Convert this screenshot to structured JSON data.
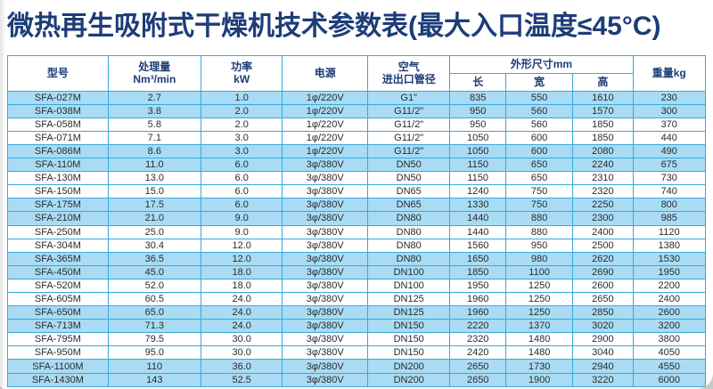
{
  "title": "微热再生吸附式干燥机技术参数表(最大入口温度≤45°C)",
  "colors": {
    "accent_border": "#36a9de",
    "row_highlight": "#a9dcf4",
    "title_text": "#1d3d78",
    "cell_text": "#2b2b2b"
  },
  "table": {
    "column_keys": [
      "model",
      "capacity",
      "power",
      "supply",
      "pipe",
      "length",
      "width",
      "height",
      "weight"
    ],
    "headers": {
      "model": "型号",
      "capacity_line1": "处理量",
      "capacity_line2": "Nm³/min",
      "power_line1": "功率",
      "power_line2": "kW",
      "supply": "电源",
      "pipe_line1": "空气",
      "pipe_line2": "进出口管径",
      "dimensions_group": "外形尺寸mm",
      "dim_length": "长",
      "dim_width": "宽",
      "dim_height": "高",
      "weight": "重量kg"
    },
    "row_highlight_pattern": "pairs-alternating-starting-blue",
    "rows": [
      [
        "SFA-027M",
        "2.7",
        "1.0",
        "1φ/220V",
        "G1\"",
        "835",
        "550",
        "1610",
        "230"
      ],
      [
        "SFA-038M",
        "3.8",
        "2.0",
        "1φ/220V",
        "G11/2\"",
        "950",
        "560",
        "1570",
        "300"
      ],
      [
        "SFA-058M",
        "5.8",
        "2.0",
        "1φ/220V",
        "G11/2\"",
        "950",
        "560",
        "1850",
        "370"
      ],
      [
        "SFA-071M",
        "7.1",
        "3.0",
        "1φ/220V",
        "G11/2\"",
        "1050",
        "600",
        "1850",
        "440"
      ],
      [
        "SFA-086M",
        "8.6",
        "3.0",
        "1φ/220V",
        "G11/2\"",
        "1050",
        "600",
        "2080",
        "490"
      ],
      [
        "SFA-110M",
        "11.0",
        "6.0",
        "3φ/380V",
        "DN50",
        "1150",
        "650",
        "2240",
        "675"
      ],
      [
        "SFA-130M",
        "13.0",
        "6.0",
        "3φ/380V",
        "DN50",
        "1150",
        "650",
        "2310",
        "730"
      ],
      [
        "SFA-150M",
        "15.0",
        "6.0",
        "3φ/380V",
        "DN65",
        "1240",
        "750",
        "2320",
        "740"
      ],
      [
        "SFA-175M",
        "17.5",
        "6.0",
        "3φ/380V",
        "DN65",
        "1330",
        "750",
        "2250",
        "800"
      ],
      [
        "SFA-210M",
        "21.0",
        "9.0",
        "3φ/380V",
        "DN80",
        "1440",
        "880",
        "2300",
        "985"
      ],
      [
        "SFA-250M",
        "25.0",
        "9.0",
        "3φ/380V",
        "DN80",
        "1440",
        "880",
        "2400",
        "1120"
      ],
      [
        "SFA-304M",
        "30.4",
        "12.0",
        "3φ/380V",
        "DN80",
        "1560",
        "950",
        "2500",
        "1380"
      ],
      [
        "SFA-365M",
        "36.5",
        "12.0",
        "3φ/380V",
        "DN80",
        "1650",
        "980",
        "2620",
        "1530"
      ],
      [
        "SFA-450M",
        "45.0",
        "18.0",
        "3φ/380V",
        "DN100",
        "1850",
        "1100",
        "2690",
        "1950"
      ],
      [
        "SFA-520M",
        "52.0",
        "18.0",
        "3φ/380V",
        "DN100",
        "1950",
        "1250",
        "2600",
        "2200"
      ],
      [
        "SFA-605M",
        "60.5",
        "24.0",
        "3φ/380V",
        "DN125",
        "1960",
        "1250",
        "2650",
        "2400"
      ],
      [
        "SFA-650M",
        "65.0",
        "24.0",
        "3φ/380V",
        "DN125",
        "1960",
        "1250",
        "2850",
        "2600"
      ],
      [
        "SFA-713M",
        "71.3",
        "24.0",
        "3φ/380V",
        "DN150",
        "2220",
        "1370",
        "3020",
        "3200"
      ],
      [
        "SFA-795M",
        "79.5",
        "30.0",
        "3φ/380V",
        "DN150",
        "2320",
        "1480",
        "2900",
        "3800"
      ],
      [
        "SFA-950M",
        "95.0",
        "30.0",
        "3φ/380V",
        "DN150",
        "2420",
        "1480",
        "3040",
        "4050"
      ],
      [
        "SFA-1100M",
        "110",
        "36.0",
        "3φ/380V",
        "DN200",
        "2650",
        "1730",
        "2940",
        "4550"
      ],
      [
        "SFA-1430M",
        "143",
        "52.5",
        "3φ/380V",
        "DN200",
        "2650",
        "1900",
        "3220",
        "6000"
      ]
    ]
  }
}
